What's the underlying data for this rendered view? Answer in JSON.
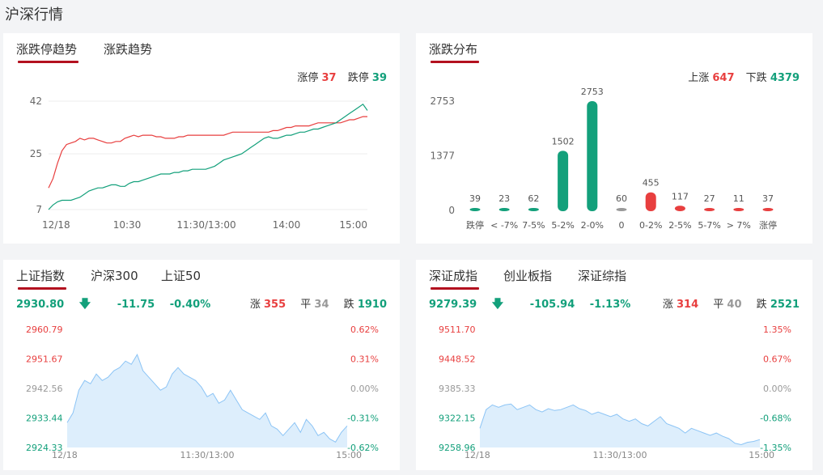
{
  "page_title": "沪深行情",
  "panel1": {
    "tabs": [
      "涨跌停趋势",
      "涨跌趋势"
    ],
    "legend": {
      "up_label": "涨停",
      "up_value": "37",
      "down_label": "跌停",
      "down_value": "39"
    }
  },
  "panel2": {
    "tabs": [
      "涨跌分布"
    ],
    "legend": {
      "up_label": "上涨",
      "up_value": "647",
      "down_label": "下跌",
      "down_value": "4379"
    }
  },
  "panel3": {
    "tabs": [
      "上证指数",
      "沪深300",
      "上证50"
    ],
    "quote": {
      "price": "2930.80",
      "change": "-11.75",
      "pct": "-0.40%"
    },
    "stats": {
      "rise_label": "涨",
      "rise": "355",
      "flat_label": "平",
      "flat": "34",
      "fall_label": "跌",
      "fall": "1910"
    }
  },
  "panel4": {
    "tabs": [
      "深证成指",
      "创业板指",
      "深证综指"
    ],
    "quote": {
      "price": "9279.39",
      "change": "-105.94",
      "pct": "-1.13%"
    },
    "stats": {
      "rise_label": "涨",
      "rise": "314",
      "flat_label": "平",
      "flat": "40",
      "fall_label": "跌",
      "fall": "2521"
    }
  },
  "colors": {
    "up": "#e83f3f",
    "down": "#13a07b",
    "flat": "#999999",
    "accent": "#b3111f",
    "area_line": "#8cc4f5",
    "area_fill": "#ddeefc"
  },
  "chart_data": [
    {
      "type": "line",
      "x_ticks": [
        "12/18",
        "10:30",
        "11:30/13:00",
        "14:00",
        "15:00"
      ],
      "y_ticks": [
        7,
        25,
        42
      ],
      "ylim": [
        7,
        42
      ],
      "series": [
        {
          "name": "涨停",
          "color": "#e83f3f",
          "values": [
            14,
            17,
            22,
            26,
            28,
            28.5,
            29,
            30,
            29.5,
            30,
            30,
            29.5,
            29,
            28.5,
            28.5,
            29,
            29,
            30,
            30.5,
            31,
            30.5,
            31,
            31,
            31,
            30.5,
            30.5,
            30,
            30,
            30,
            30.5,
            30.5,
            31,
            31,
            31,
            31,
            31,
            31,
            31,
            31,
            31,
            31.5,
            32,
            32,
            32,
            32,
            32,
            32,
            32,
            32,
            32,
            32.5,
            32.5,
            33,
            33.5,
            33.5,
            34,
            34,
            34,
            34,
            34.5,
            35,
            35,
            35,
            35,
            35,
            35,
            35.5,
            36,
            36,
            36.5,
            37,
            37
          ]
        },
        {
          "name": "跌停",
          "color": "#13a07b",
          "values": [
            7,
            8.5,
            9.5,
            10,
            10,
            10,
            10.5,
            11,
            12,
            13,
            13.5,
            14,
            14,
            14.5,
            15,
            15,
            14.5,
            14.5,
            15.5,
            16,
            16,
            16.5,
            17,
            17.5,
            18,
            18.5,
            18.5,
            18.5,
            19,
            19,
            19.5,
            19.5,
            20,
            20,
            20,
            20,
            20.5,
            21,
            22,
            23,
            23.5,
            24,
            24.5,
            25,
            26,
            27,
            28,
            29,
            30,
            30.5,
            30,
            30,
            30.5,
            31,
            31,
            31.5,
            32,
            32,
            32.5,
            33,
            33,
            33.5,
            34,
            34.5,
            35,
            36,
            37,
            38,
            39,
            40,
            41,
            39
          ]
        }
      ]
    },
    {
      "type": "bar",
      "categories": [
        "跌停",
        "< -7%",
        "7-5%",
        "5-2%",
        "2-0%",
        "0",
        "0-2%",
        "2-5%",
        "5-7%",
        "> 7%",
        "涨停"
      ],
      "values": [
        39,
        23,
        62,
        1502,
        2753,
        60,
        455,
        117,
        27,
        11,
        37
      ],
      "colors": [
        "#13a07b",
        "#13a07b",
        "#13a07b",
        "#13a07b",
        "#13a07b",
        "#999999",
        "#e83f3f",
        "#e83f3f",
        "#e83f3f",
        "#e83f3f",
        "#e83f3f"
      ],
      "y_ticks": [
        0,
        1377,
        2753
      ],
      "ylim": [
        0,
        2753
      ]
    },
    {
      "type": "area",
      "x_ticks": [
        "12/18",
        "11:30/13:00",
        "15:00"
      ],
      "y_ticks_left": [
        "2960.79",
        "2951.67",
        "2942.56",
        "2933.44",
        "2924.33"
      ],
      "y_ticks_right": [
        "0.62%",
        "0.31%",
        "0.00%",
        "-0.31%",
        "-0.62%"
      ],
      "ylim": [
        2924.33,
        2960.79
      ],
      "values": [
        2932,
        2935,
        2942,
        2945,
        2944,
        2947,
        2945,
        2946,
        2948,
        2949,
        2951,
        2950,
        2953,
        2948,
        2946,
        2944,
        2942,
        2943,
        2947,
        2949,
        2947,
        2946,
        2945,
        2943,
        2940,
        2941,
        2938,
        2939,
        2942,
        2939,
        2936,
        2935,
        2934,
        2933,
        2935,
        2931,
        2930,
        2928,
        2930,
        2932,
        2929,
        2933,
        2931,
        2928,
        2929,
        2927,
        2926,
        2929,
        2931
      ]
    },
    {
      "type": "area",
      "x_ticks": [
        "12/18",
        "11:30/13:00",
        "15:00"
      ],
      "y_ticks_left": [
        "9511.70",
        "9448.52",
        "9385.33",
        "9322.15",
        "9258.96"
      ],
      "y_ticks_right": [
        "1.35%",
        "0.67%",
        "0.00%",
        "-0.68%",
        "-1.35%"
      ],
      "ylim": [
        9258.96,
        9511.7
      ],
      "values": [
        9300,
        9340,
        9350,
        9345,
        9350,
        9352,
        9340,
        9345,
        9350,
        9340,
        9335,
        9342,
        9338,
        9340,
        9345,
        9350,
        9342,
        9338,
        9330,
        9335,
        9330,
        9325,
        9330,
        9320,
        9315,
        9320,
        9310,
        9305,
        9315,
        9325,
        9310,
        9305,
        9300,
        9290,
        9300,
        9295,
        9290,
        9285,
        9290,
        9283,
        9278,
        9268,
        9265,
        9270,
        9272,
        9276
      ]
    }
  ]
}
